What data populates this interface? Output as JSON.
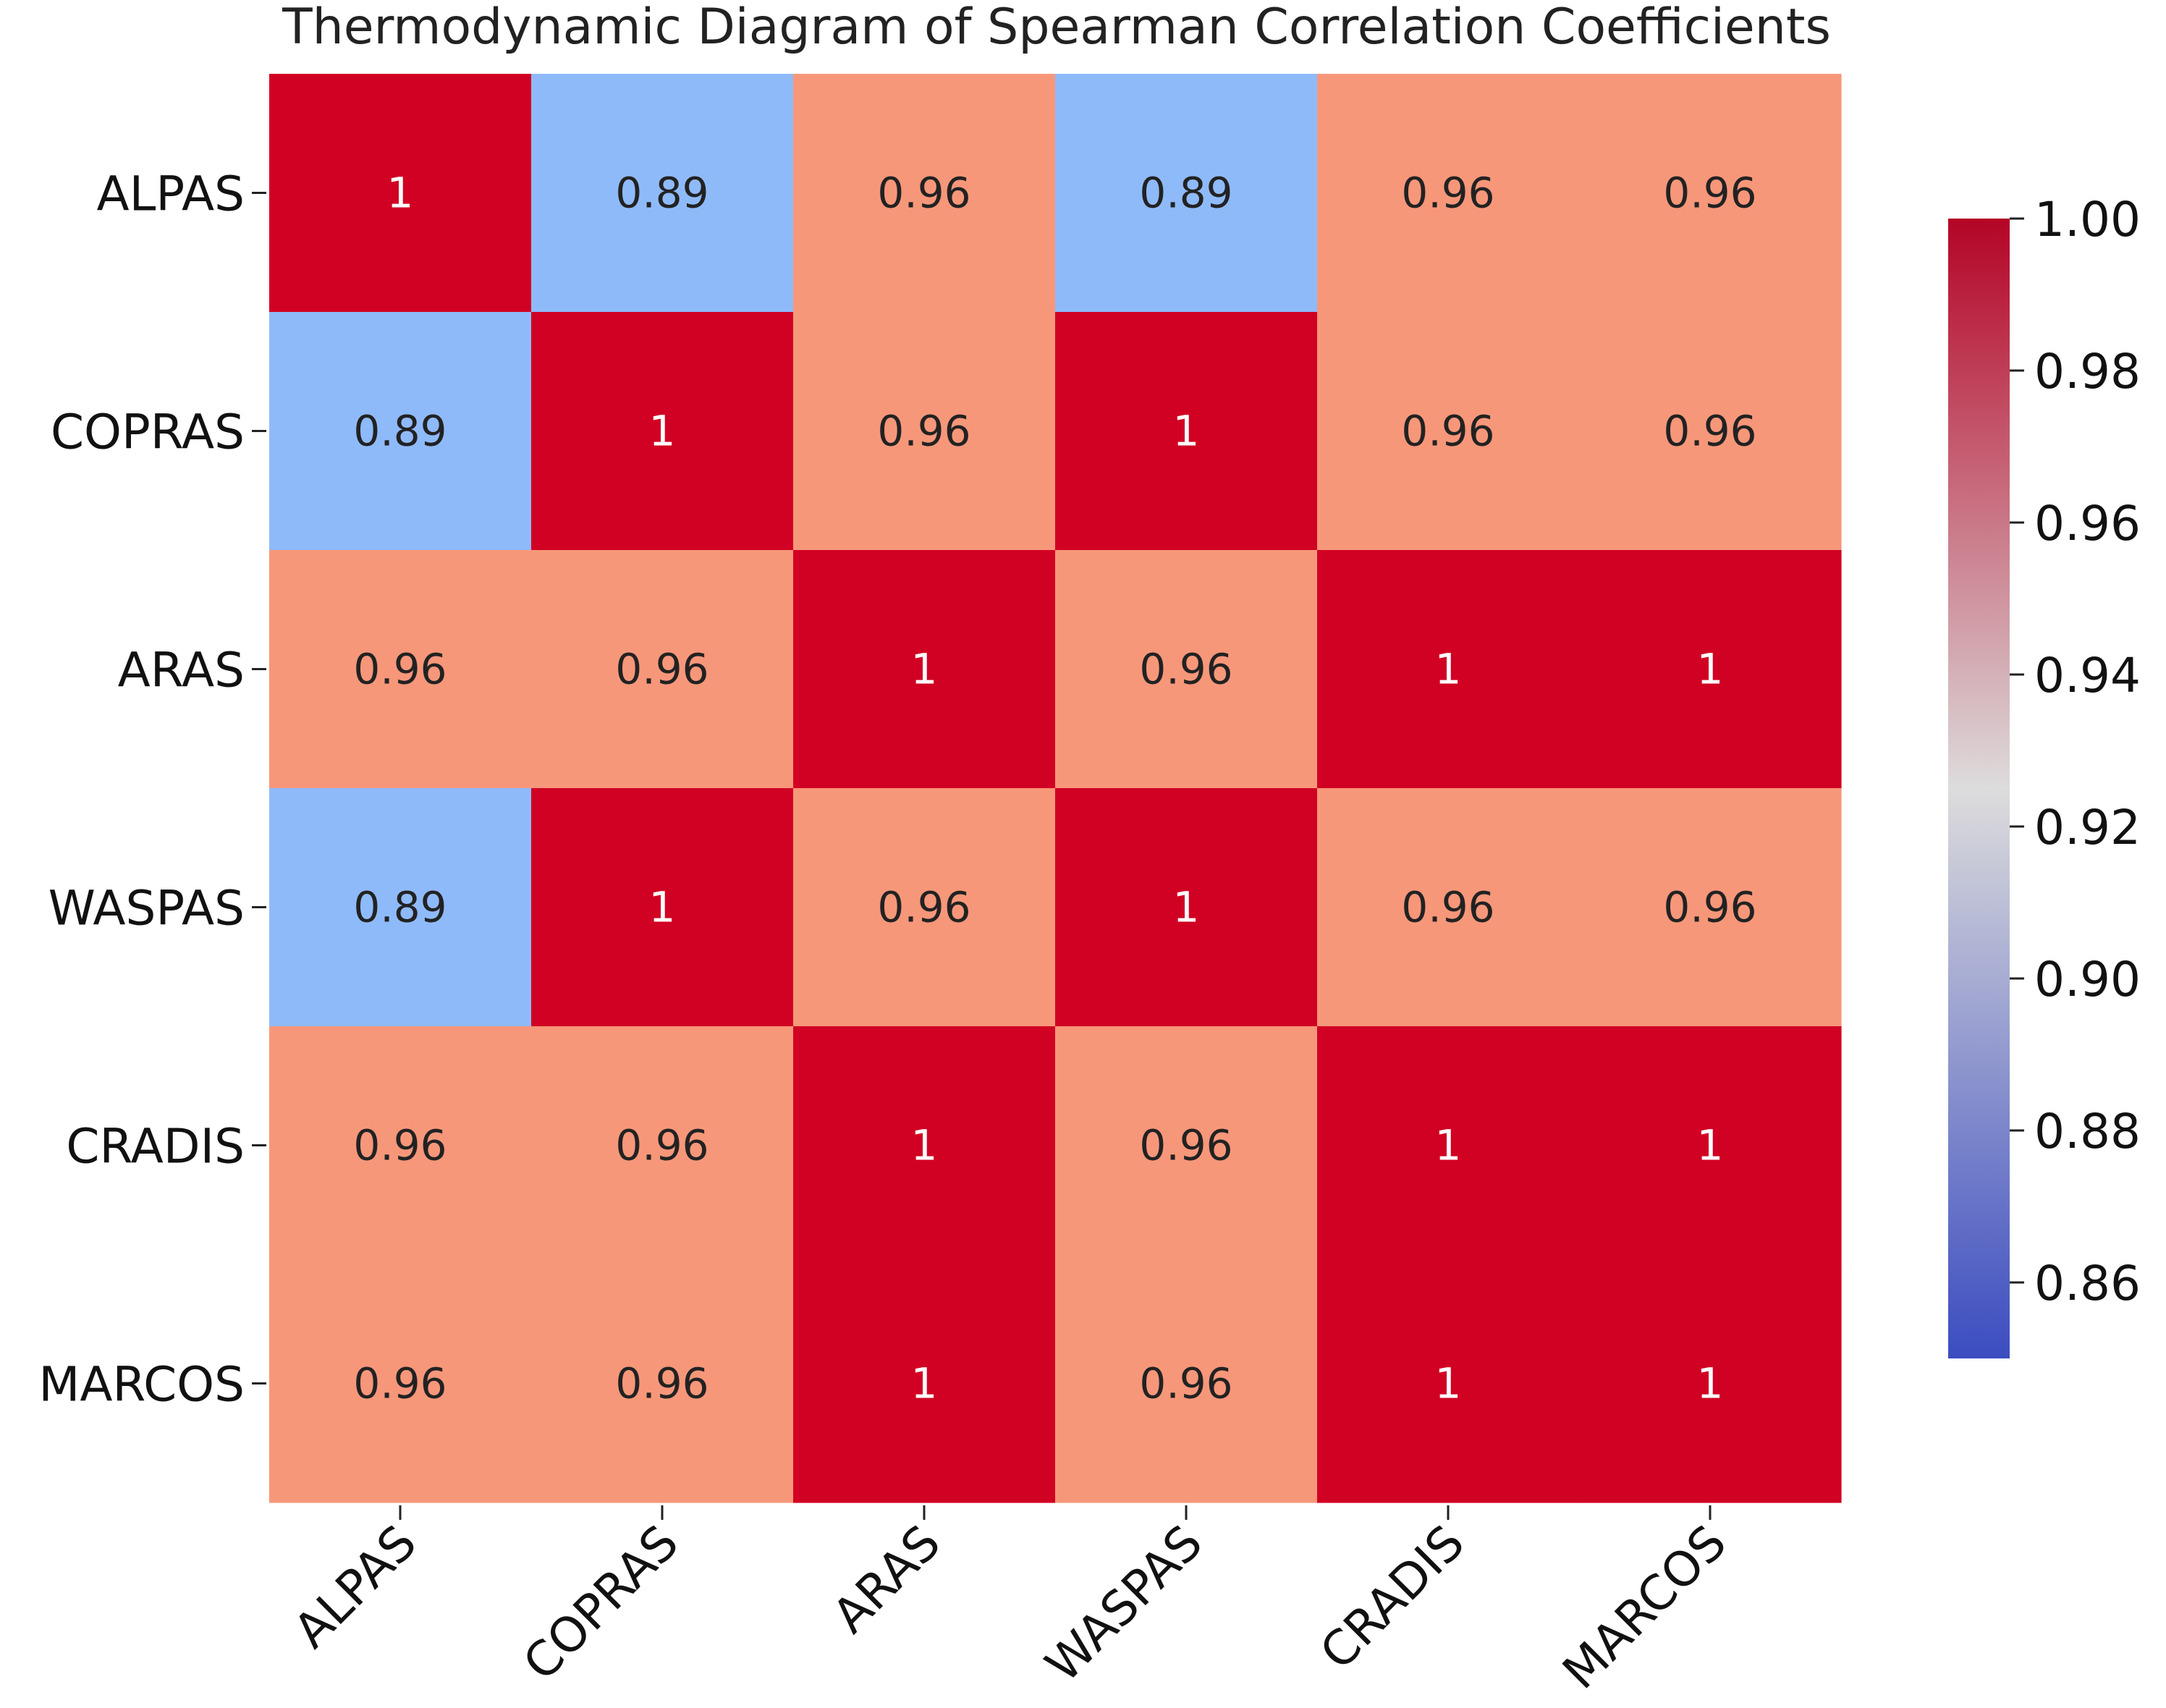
{
  "chart_data": {
    "type": "heatmap",
    "title": "Thermodynamic Diagram of Spearman Correlation Coefficients",
    "row_labels": [
      "ALPAS",
      "COPRAS",
      "ARAS",
      "WASPAS",
      "CRADIS",
      "MARCOS"
    ],
    "col_labels": [
      "ALPAS",
      "COPRAS",
      "ARAS",
      "WASPAS",
      "CRADIS",
      "MARCOS"
    ],
    "values": [
      [
        1,
        0.89,
        0.96,
        0.89,
        0.96,
        0.96
      ],
      [
        0.89,
        1,
        0.96,
        1,
        0.96,
        0.96
      ],
      [
        0.96,
        0.96,
        1,
        0.96,
        1,
        1
      ],
      [
        0.89,
        1,
        0.96,
        1,
        0.96,
        0.96
      ],
      [
        0.96,
        0.96,
        1,
        0.96,
        1,
        1
      ],
      [
        0.96,
        0.96,
        1,
        0.96,
        1,
        1
      ]
    ],
    "cell_text": [
      [
        "1",
        "0.89",
        "0.96",
        "0.89",
        "0.96",
        "0.96"
      ],
      [
        "0.89",
        "1",
        "0.96",
        "1",
        "0.96",
        "0.96"
      ],
      [
        "0.96",
        "0.96",
        "1",
        "0.96",
        "1",
        "1"
      ],
      [
        "0.89",
        "1",
        "0.96",
        "1",
        "0.96",
        "0.96"
      ],
      [
        "0.96",
        "0.96",
        "1",
        "0.96",
        "1",
        "1"
      ],
      [
        "0.96",
        "0.96",
        "1",
        "0.96",
        "1",
        "1"
      ]
    ],
    "colormap": "coolwarm",
    "colors": {
      "low": "#3b4cc0",
      "mid": "#dddcdc",
      "high": "#b40426",
      "cell_1": "#d10123",
      "cell_096": "#f7977a",
      "cell_089": "#8fbafa",
      "text_dark_cell": "#ffffff",
      "text_light_cell": "#222222"
    },
    "colorbar": {
      "vmin": 0.85,
      "vmax": 1.0,
      "ticks": [
        1.0,
        0.98,
        0.96,
        0.94,
        0.92,
        0.9,
        0.88,
        0.86
      ],
      "tick_labels": [
        "1.00",
        "0.98",
        "0.96",
        "0.94",
        "0.92",
        "0.90",
        "0.88",
        "0.86"
      ]
    }
  }
}
